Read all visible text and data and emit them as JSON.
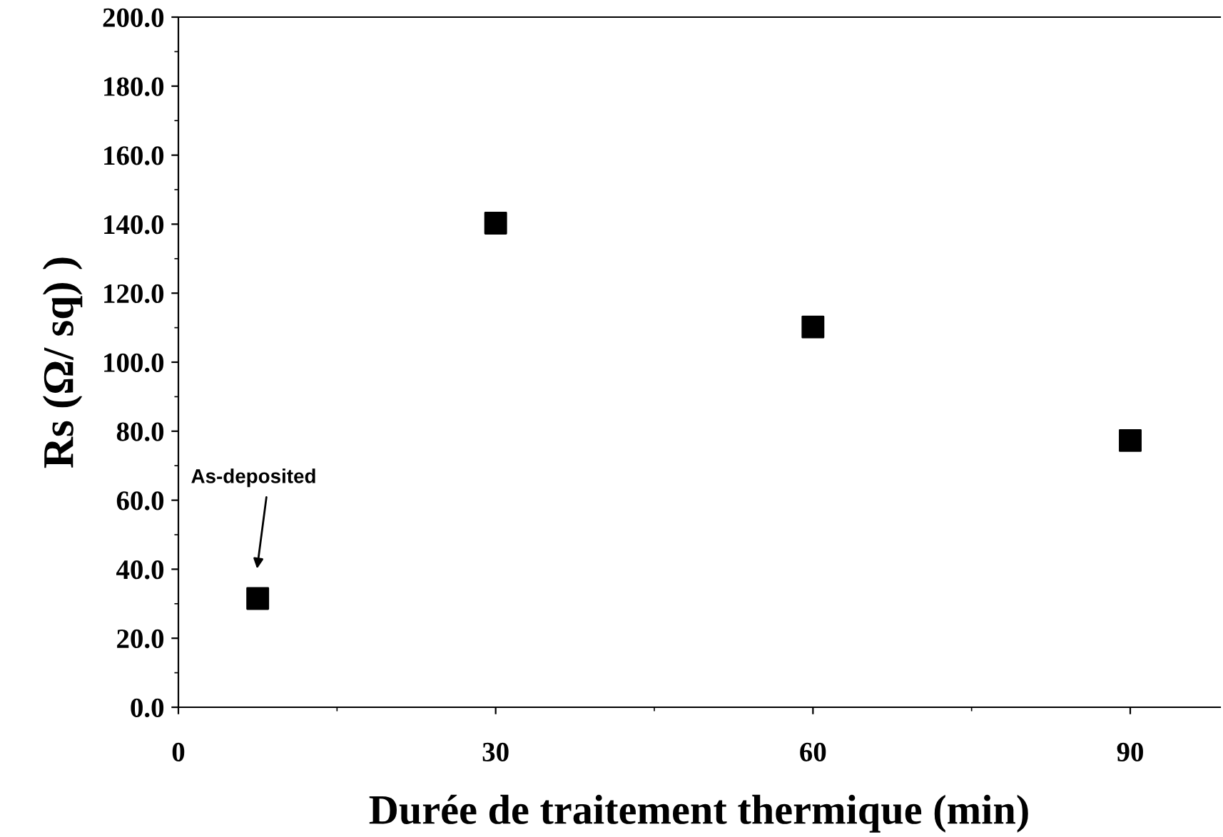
{
  "chart_data": {
    "type": "scatter",
    "xlabel": "Durée de traitement thermique (min)",
    "ylabel": "Rs (Ω/ sq) )",
    "x": [
      7.5,
      30,
      60,
      90
    ],
    "series": [
      {
        "color": "#000000",
        "values": [
          31.5,
          140.3,
          110.2,
          77.3
        ]
      }
    ],
    "marker": "square",
    "grid": false,
    "legend": false,
    "xlim": [
      0,
      98.5
    ],
    "xticks": [
      0,
      30,
      60,
      90
    ],
    "ylim": [
      0,
      200
    ],
    "yticks": [
      {
        "value": 0,
        "label": "0.0"
      },
      {
        "value": 20,
        "label": "20.0"
      },
      {
        "value": 40,
        "label": "40.0"
      },
      {
        "value": 60,
        "label": "60.0"
      },
      {
        "value": 80,
        "label": "80.0"
      },
      {
        "value": 100,
        "label": "100.0"
      },
      {
        "value": 120,
        "label": "120.0"
      },
      {
        "value": 140,
        "label": "140.0"
      },
      {
        "value": 160,
        "label": "160.0"
      },
      {
        "value": 180,
        "label": "180.0"
      },
      {
        "value": 200,
        "label": "200.0"
      }
    ],
    "annotations": [
      "As-deposited"
    ]
  }
}
